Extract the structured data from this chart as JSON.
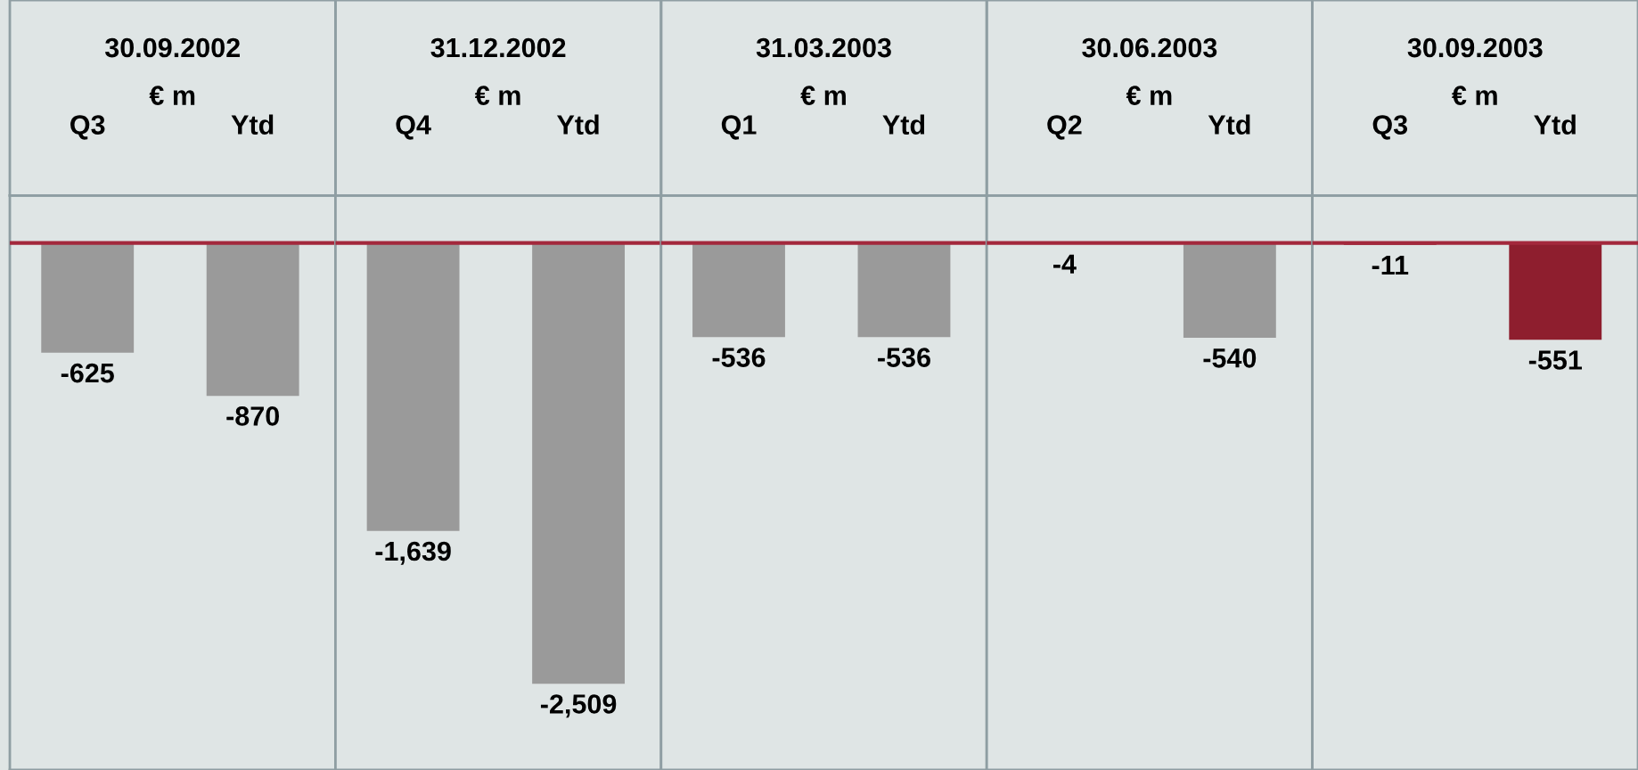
{
  "chart_data": [
    {
      "type": "bar",
      "title": "30.09.2002",
      "subtitle": "€ m",
      "categories": [
        "Q3",
        "Ytd"
      ],
      "values": [
        -625,
        -870
      ],
      "value_labels": [
        "-625",
        "-870"
      ],
      "colors": [
        "#9a9a9a",
        "#9a9a9a"
      ],
      "ylim": [
        -3000,
        270
      ],
      "tick_labels": "x",
      "ref_lines": [
        {
          "axis": "y",
          "value": 0,
          "color": "#a3283c"
        }
      ]
    },
    {
      "type": "bar",
      "title": "31.12.2002",
      "subtitle": "€ m",
      "categories": [
        "Q4",
        "Ytd"
      ],
      "values": [
        -1639,
        -2509
      ],
      "value_labels": [
        "-1,639",
        "-2,509"
      ],
      "colors": [
        "#9a9a9a",
        "#9a9a9a"
      ],
      "ylim": [
        -3000,
        270
      ],
      "tick_labels": "x",
      "ref_lines": [
        {
          "axis": "y",
          "value": 0,
          "color": "#a3283c"
        }
      ]
    },
    {
      "type": "bar",
      "title": "31.03.2003",
      "subtitle": "€ m",
      "categories": [
        "Q1",
        "Ytd"
      ],
      "values": [
        -536,
        -536
      ],
      "value_labels": [
        "-536",
        "-536"
      ],
      "colors": [
        "#9a9a9a",
        "#9a9a9a"
      ],
      "ylim": [
        -3000,
        270
      ],
      "tick_labels": "x",
      "ref_lines": [
        {
          "axis": "y",
          "value": 0,
          "color": "#a3283c"
        }
      ]
    },
    {
      "type": "bar",
      "title": "30.06.2003",
      "subtitle": "€ m",
      "categories": [
        "Q2",
        "Ytd"
      ],
      "values": [
        -4,
        -540
      ],
      "value_labels": [
        "-4",
        "-540"
      ],
      "colors": [
        "#9a9a9a",
        "#9a9a9a"
      ],
      "ylim": [
        -3000,
        270
      ],
      "tick_labels": "x",
      "ref_lines": [
        {
          "axis": "y",
          "value": 0,
          "color": "#a3283c"
        }
      ]
    },
    {
      "type": "bar",
      "title": "30.09.2003",
      "subtitle": "€ m",
      "categories": [
        "Q3",
        "Ytd"
      ],
      "values": [
        -11,
        -551
      ],
      "value_labels": [
        "-11",
        "-551"
      ],
      "colors": [
        "#8e1e2e",
        "#8e1e2e"
      ],
      "ylim": [
        -3000,
        270
      ],
      "tick_labels": "x",
      "ref_lines": [
        {
          "axis": "y",
          "value": 0,
          "color": "#a3283c"
        }
      ]
    }
  ]
}
